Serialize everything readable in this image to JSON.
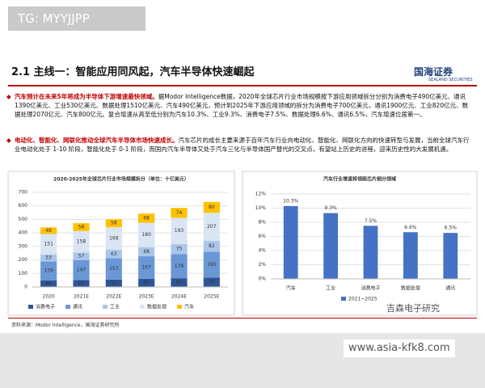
{
  "tag": "TG: MYYJJPP",
  "header": {
    "title": "2.1 主线一：智能应用同风起，汽车半导体快速崛起",
    "logo": "国海证券",
    "logo_en": "SEALAND SECURITIES"
  },
  "bullets": [
    {
      "highlight": "汽车预计在未来5年将成为半导体下游增速最快领域。",
      "text": "据Modor Intelligence数据，2020年全球芯片行业市场规模按下游应用领域拆分分别为消费电子490亿美元、通讯1390亿美元、工业530亿美元、数据处理1510亿美元、汽车490亿美元，预计到2025年下游应用领域的拆分为消费电子700亿美元，通讯1900亿元、工业820亿元、数据处理2070亿元、汽车800亿元。复合增速从高至低分别为汽车10.3%、工业9.3%、消费电子7.5%、数据处理6.6%、通讯6.5%，汽车增速位居第一。"
    },
    {
      "highlight": "电动化、智能化、网联化推动全球汽车半导体市场快速成长。",
      "text": "汽车芯片的成长主要来源于百年汽车行业向电动化、智能化、网联化方向的快速转型与发展，当前全球汽车行业电动化处于 1-10 阶段，智能化处于 0-1 阶段，而国内汽车半导体又处于汽车三化与半导体国产替代的交叉点，有望站上历史的进程，迎来历史性的大发展机遇。"
    }
  ],
  "chart_data": [
    {
      "type": "stacked_bar",
      "title": "2020-2025年全球芯片行业市场规模拆分（单位：十亿美元）",
      "categories": [
        "2020",
        "2021E",
        "2022E",
        "2023E",
        "2024E",
        "2025E"
      ],
      "series": [
        {
          "name": "消费电子",
          "color": "#2f5597",
          "values": [
            49,
            52,
            55,
            60,
            65,
            70
          ]
        },
        {
          "name": "通讯",
          "color": "#6a97d6",
          "values": [
            139,
            147,
            157,
            167,
            178,
            190
          ]
        },
        {
          "name": "工业",
          "color": "#a9c6ea",
          "values": [
            53,
            57,
            63,
            68,
            75,
            82
          ]
        },
        {
          "name": "数据处理",
          "color": "#dae5f4",
          "values": [
            151,
            158,
            168,
            180,
            193,
            207
          ]
        },
        {
          "name": "汽车",
          "color": "#ffc000",
          "values": [
            49,
            58,
            58,
            68,
            74,
            80
          ]
        }
      ],
      "ylim": [
        0,
        700
      ],
      "yticks": [
        0,
        100,
        200,
        300,
        400,
        500,
        600,
        700
      ],
      "grid": true
    },
    {
      "type": "bar",
      "title": "汽车行业增速将领跑芯片细分领域",
      "categories": [
        "汽车",
        "工业",
        "消费电子",
        "数据处理",
        "通讯"
      ],
      "series": [
        {
          "name": "2021~2025",
          "color": "#4472c4",
          "values": [
            10.3,
            9.3,
            7.5,
            6.6,
            6.5
          ],
          "value_labels": [
            "10.3%",
            "9.3%",
            "7.5%",
            "6.6%",
            "6.5%"
          ]
        }
      ],
      "ylim": [
        0,
        12
      ],
      "yticks": [
        {
          "value": 0,
          "label": "0%"
        },
        {
          "value": 2,
          "label": "2%"
        },
        {
          "value": 4,
          "label": "4%"
        },
        {
          "value": 6,
          "label": "6%"
        },
        {
          "value": 8,
          "label": "8%"
        },
        {
          "value": 10,
          "label": "10%"
        },
        {
          "value": 12,
          "label": "12%"
        }
      ],
      "grid": true
    }
  ],
  "source": "资料来源：Modor Intelligence，国海证券研究所",
  "watermark": "吉森电子研究",
  "url": "www.asia-kfk8.com"
}
